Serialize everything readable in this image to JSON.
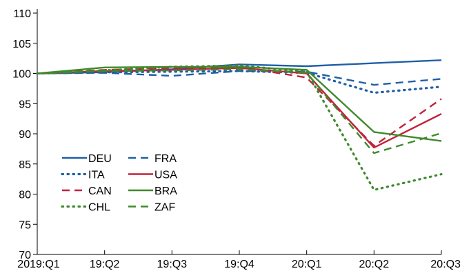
{
  "chart_data": {
    "type": "line",
    "top_label": "",
    "categories": [
      "2019:Q1",
      "19:Q2",
      "19:Q3",
      "19:Q4",
      "20:Q1",
      "20:Q2",
      "20:Q3"
    ],
    "ylim": [
      70,
      110
    ],
    "y_ticks": [
      "70",
      "75",
      "80",
      "85",
      "90",
      "95",
      "100",
      "105",
      "110"
    ],
    "grid": false,
    "legend_position": "bottom-left",
    "series": [
      {
        "name": "DEU",
        "color": "#1f5fa6",
        "style": "solid",
        "values": [
          100,
          100.2,
          100.7,
          101.5,
          101.2,
          101.7,
          102.2
        ]
      },
      {
        "name": "FRA",
        "color": "#1f5fa6",
        "style": "dashed",
        "values": [
          100,
          100.1,
          99.6,
          100.4,
          100.3,
          98.1,
          99.1
        ]
      },
      {
        "name": "ITA",
        "color": "#1f5fa6",
        "style": "dotted",
        "values": [
          100,
          100.2,
          100.3,
          100.4,
          100.1,
          96.8,
          97.8
        ]
      },
      {
        "name": "USA",
        "color": "#c0233c",
        "style": "solid",
        "values": [
          100,
          100.4,
          100.6,
          100.9,
          100.0,
          87.7,
          93.3
        ]
      },
      {
        "name": "CAN",
        "color": "#c0233c",
        "style": "dashed",
        "values": [
          100,
          100.6,
          100.9,
          101.1,
          99.3,
          88.0,
          95.8
        ]
      },
      {
        "name": "BRA",
        "color": "#3e8a2b",
        "style": "solid",
        "values": [
          100,
          101.0,
          101.1,
          101.1,
          100.6,
          90.3,
          88.8
        ]
      },
      {
        "name": "CHL",
        "color": "#3e8a2b",
        "style": "dotted",
        "values": [
          100,
          100.5,
          101.1,
          101.3,
          100.3,
          80.7,
          83.3
        ]
      },
      {
        "name": "ZAF",
        "color": "#3e8a2b",
        "style": "dashed",
        "values": [
          100,
          100.4,
          100.5,
          100.7,
          100.1,
          86.8,
          90.1
        ]
      }
    ]
  }
}
